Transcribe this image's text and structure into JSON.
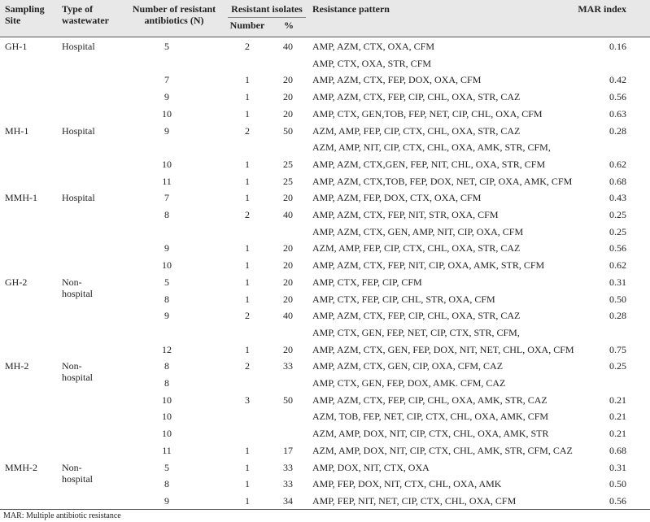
{
  "header": {
    "site": "Sampling Site",
    "type": "Type of wastewater",
    "n": "Number of resistant antibiotics (N)",
    "isolates": "Resistant isolates",
    "number": "Number",
    "pct": "%",
    "pattern": "Resistance pattern",
    "mar": "MAR index"
  },
  "table": {
    "rows": [
      [
        "GH-1",
        "Hospital",
        "5",
        "2",
        "40",
        "AMP, AZM, CTX, OXA, CFM",
        "0.16"
      ],
      [
        null,
        null,
        null,
        null,
        null,
        "AMP, CTX, OXA, STR, CFM",
        null
      ],
      [
        null,
        null,
        "7",
        "1",
        "20",
        "AMP, AZM, CTX, FEP, DOX, OXA, CFM",
        "0.42"
      ],
      [
        null,
        null,
        "9",
        "1",
        "20",
        "AMP, AZM, CTX, FEP, CIP, CHL, OXA, STR, CAZ",
        "0.56"
      ],
      [
        null,
        null,
        "10",
        "1",
        "20",
        "AMP, CTX, GEN,TOB, FEP, NET, CIP, CHL, OXA, CFM",
        "0.63"
      ],
      [
        "MH-1",
        "Hospital",
        "9",
        "2",
        "50",
        "AZM, AMP, FEP, CIP, CTX, CHL, OXA, STR, CAZ",
        "0.28"
      ],
      [
        null,
        null,
        null,
        null,
        null,
        "AZM, AMP, NIT, CIP, CTX, CHL, OXA, AMK, STR, CFM,",
        null
      ],
      [
        null,
        null,
        "10",
        "1",
        "25",
        "AMP, AZM, CTX,GEN, FEP, NIT, CHL, OXA, STR, CFM",
        "0.62"
      ],
      [
        null,
        null,
        "11",
        "1",
        "25",
        "AMP, AZM, CTX,TOB, FEP, DOX, NET, CIP, OXA, AMK, CFM",
        "0.68"
      ],
      [
        "MMH-1",
        "Hospital",
        "7",
        "1",
        "20",
        "AMP, AZM, FEP, DOX, CTX, OXA, CFM",
        "0.43"
      ],
      [
        null,
        null,
        "8",
        "2",
        "40",
        "AMP, AZM, CTX, FEP, NIT, STR, OXA, CFM",
        "0.25"
      ],
      [
        null,
        null,
        null,
        null,
        null,
        "AMP, AZM, CTX, GEN, AMP, NIT, CIP, OXA, CFM",
        "0.25"
      ],
      [
        null,
        null,
        "9",
        "1",
        "20",
        "AZM, AMP, FEP, CIP, CTX, CHL, OXA, STR, CAZ",
        "0.56"
      ],
      [
        null,
        null,
        "10",
        "1",
        "20",
        "AMP, AZM, CTX, FEP, NIT, CIP, OXA, AMK, STR, CFM",
        "0.62"
      ],
      [
        "GH-2",
        "Non-hospital",
        "5",
        "1",
        "20",
        "AMP, CTX, FEP, CIP, CFM",
        "0.31"
      ],
      [
        null,
        null,
        "8",
        "1",
        "20",
        "AMP, CTX, FEP, CIP, CHL, STR, OXA, CFM",
        "0.50"
      ],
      [
        null,
        null,
        "9",
        "2",
        "40",
        "AMP, AZM, CTX, FEP, CIP, CHL, OXA, STR, CAZ",
        "0.28"
      ],
      [
        null,
        null,
        null,
        null,
        null,
        "AMP, CTX, GEN, FEP, NET, CIP, CTX, STR, CFM,",
        null
      ],
      [
        null,
        null,
        "12",
        "1",
        "20",
        "AMP, AZM, CTX, GEN, FEP, DOX, NIT, NET, CHL, OXA, CFM",
        "0.75"
      ],
      [
        "MH-2",
        "Non-hospital",
        "8",
        "2",
        "33",
        "AMP, AZM, CTX, GEN, CIP, OXA, CFM, CAZ",
        "0.25"
      ],
      [
        null,
        null,
        "8",
        null,
        null,
        "AMP, CTX, GEN, FEP, DOX, AMK. CFM, CAZ",
        null
      ],
      [
        null,
        null,
        "10",
        "3",
        "50",
        "AMP, AZM, CTX, FEP, CIP, CHL, OXA, AMK, STR, CAZ",
        "0.21"
      ],
      [
        null,
        null,
        "10",
        null,
        null,
        "AZM, TOB, FEP, NET, CIP, CTX, CHL, OXA, AMK, CFM",
        "0.21"
      ],
      [
        null,
        null,
        "10",
        null,
        null,
        "AZM, AMP, DOX, NIT, CIP, CTX, CHL, OXA, AMK, STR",
        "0.21"
      ],
      [
        null,
        null,
        "11",
        "1",
        "17",
        "AZM, AMP, DOX, NIT, CIP, CTX, CHL, AMK, STR, CFM, CAZ",
        "0.68"
      ],
      [
        "MMH-2",
        "Non-hospital",
        "5",
        "1",
        "33",
        "AMP, DOX, NIT, CTX, OXA",
        "0.31"
      ],
      [
        null,
        null,
        "8",
        "1",
        "33",
        "AMP, FEP, DOX, NIT, CTX, CHL, OXA, AMK",
        "0.50"
      ],
      [
        null,
        null,
        "9",
        "1",
        "34",
        "AMP, FEP, NIT, NET, CIP, CTX, CHL, OXA, CFM",
        "0.56"
      ]
    ]
  },
  "footnote": "MAR: Multiple antibiotic resistance"
}
